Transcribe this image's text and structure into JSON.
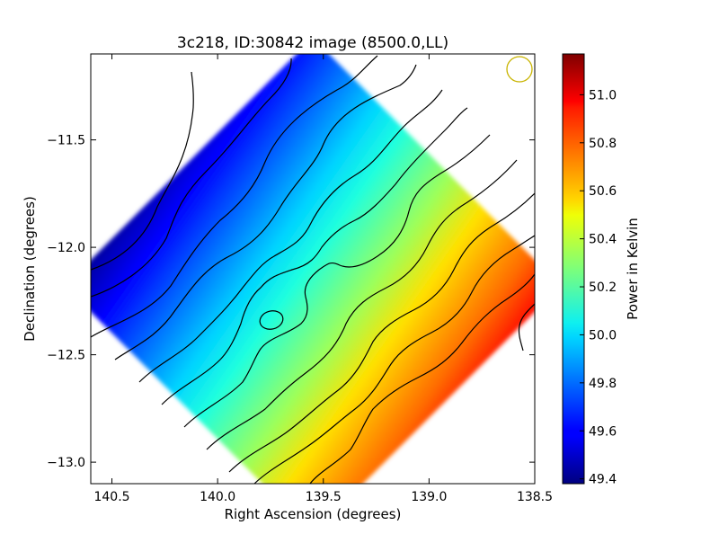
{
  "chart_data": {
    "type": "heatmap",
    "title": "3c218, ID:30842 image (8500.0,LL)",
    "xlabel": "Right Ascension (degrees)",
    "ylabel": "Declination (degrees)",
    "xlim": [
      140.6,
      138.5
    ],
    "ylim": [
      -13.1,
      -11.1
    ],
    "x_ticks": [
      140.5,
      140.0,
      139.5,
      139.0,
      138.5
    ],
    "x_tick_labels": [
      "140.5",
      "140.0",
      "139.5",
      "139.0",
      "138.5"
    ],
    "y_ticks": [
      -11.5,
      -12.0,
      -12.5,
      -13.0
    ],
    "y_tick_labels": [
      "−11.5",
      "−12.0",
      "−12.5",
      "−13.0"
    ],
    "colorbar": {
      "label": "Power in Kelvin",
      "range": [
        49.38,
        51.17
      ],
      "ticks": [
        49.4,
        49.6,
        49.8,
        50.0,
        50.2,
        50.4,
        50.6,
        50.8,
        51.0
      ],
      "tick_labels": [
        "49.4",
        "49.6",
        "49.8",
        "50.0",
        "50.2",
        "50.4",
        "50.6",
        "50.8",
        "51.0"
      ],
      "colormap": "jet"
    },
    "field": {
      "shape": "diamond",
      "vertices_ra_dec": [
        [
          139.6,
          -11.07
        ],
        [
          138.5,
          -12.47
        ],
        [
          139.6,
          -13.9
        ],
        [
          140.6,
          -12.47
        ]
      ],
      "value_min": 49.38,
      "value_max": 51.17,
      "gradient_direction": "increases toward lower-right (decreasing RA, decreasing Dec)"
    },
    "beam": {
      "ra": 138.58,
      "dec": -11.18,
      "color": "#c8b400"
    },
    "grid": false,
    "legend": "none"
  }
}
